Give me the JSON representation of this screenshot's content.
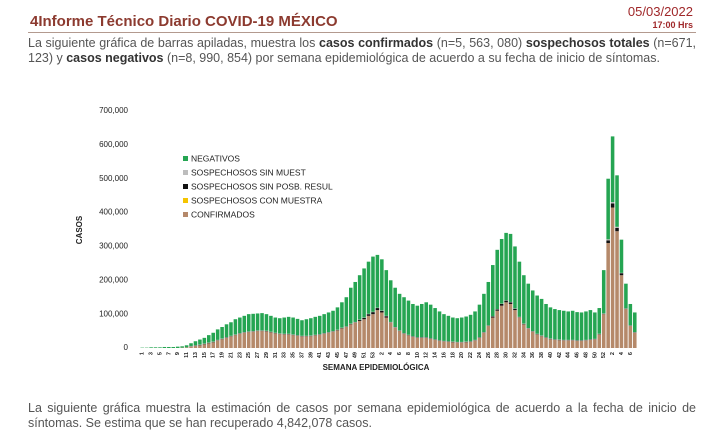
{
  "header": {
    "title": "4Informe Técnico Diario COVID-19 MÉXICO",
    "date": "05/03/2022",
    "time": "17:00 Hrs"
  },
  "intro": [
    "La siguiente gráfica de barras apiladas, muestra los ",
    "casos confirmados",
    " (n=5, 563, 080) ",
    "sospechosos totales",
    " (n=671, 123) y ",
    "casos negativos",
    " (n=8, 990, 854) por semana epidemiológica de acuerdo a su fecha de inicio de síntomas."
  ],
  "outro": "La siguiente gráfica muestra la estimación de casos por semana epidemiológica de acuerdo a la fecha de inicio de síntomas. Se estima que se han recuperado 4,842,078 casos.",
  "chart_data": {
    "type": "stacked_bar",
    "y_label": "CASOS",
    "x_label": "SEMANA EPIDEMIOLÓGICA",
    "categories": [
      "1",
      null,
      "3",
      null,
      "5",
      null,
      "7",
      null,
      "9",
      null,
      "11",
      null,
      "13",
      null,
      "15",
      null,
      "17",
      null,
      "19",
      null,
      "21",
      null,
      "23",
      null,
      "25",
      null,
      "27",
      null,
      "29",
      null,
      "31",
      null,
      "33",
      null,
      "35",
      null,
      "37",
      null,
      "39",
      null,
      "41",
      null,
      "43",
      null,
      "45",
      null,
      "47",
      null,
      "49",
      null,
      "51",
      null,
      "53",
      null,
      "2",
      null,
      "4",
      null,
      "6",
      null,
      "8",
      null,
      "10",
      null,
      "12",
      null,
      "14",
      null,
      "16",
      null,
      "18",
      null,
      "20",
      null,
      "22",
      null,
      "24",
      null,
      "26",
      null,
      "28",
      null,
      "30",
      null,
      "32",
      null,
      "34",
      null,
      "36",
      null,
      "38",
      null,
      "40",
      null,
      "42",
      null,
      "44",
      null,
      "46",
      null,
      "48",
      null,
      "50",
      null,
      "52",
      null,
      "2",
      null,
      "4",
      null,
      "6",
      null
    ],
    "ylim": [
      0,
      700000
    ],
    "yticks": [
      0,
      {
        "value": 100000,
        "label": "100,000"
      },
      {
        "value": 200000,
        "label": "200,000"
      },
      {
        "value": 300000,
        "label": "300,000"
      },
      {
        "value": 400000,
        "label": "400,000"
      },
      {
        "value": 500000,
        "label": "500,000"
      },
      {
        "value": 600000,
        "label": "600,000"
      },
      {
        "value": 700000,
        "label": "700,000"
      }
    ],
    "grid": false,
    "series": [
      {
        "name": "NEGATIVOS",
        "color": "#25a552",
        "values": [
          1000,
          1000,
          2000,
          2000,
          2000,
          3000,
          3000,
          3000,
          4000,
          4000,
          6000,
          8000,
          12000,
          15000,
          17000,
          22000,
          26000,
          31000,
          34000,
          38000,
          40000,
          45000,
          46000,
          48000,
          51000,
          51000,
          50000,
          51000,
          49000,
          47000,
          45000,
          45000,
          48000,
          50000,
          50000,
          48000,
          46000,
          49000,
          51000,
          53000,
          54000,
          56000,
          58000,
          60000,
          66000,
          75000,
          86000,
          106000,
          118000,
          131000,
          145000,
          154000,
          163000,
          156000,
          151000,
          135000,
          123000,
          116000,
          108000,
          106000,
          101000,
          95000,
          93000,
          98000,
          103000,
          99000,
          92000,
          85000,
          79000,
          75000,
          71000,
          70000,
          72000,
          74000,
          78000,
          84000,
          96000,
          113000,
          128000,
          151000,
          175000,
          191000,
          199000,
          201000,
          183000,
          163000,
          143000,
          131000,
          120000,
          113000,
          108000,
          98000,
          92000,
          89000,
          87000,
          86000,
          84000,
          86000,
          83000,
          82000,
          84000,
          86000,
          78000,
          76000,
          128000,
          179000,
          194000,
          152000,
          98000,
          73000,
          63000,
          58000
        ]
      },
      {
        "name": "SOSPECHOSOS SIN MUEST",
        "color": "#bdbdbd",
        "values": [
          0,
          0,
          0,
          0,
          0,
          0,
          0,
          0,
          0,
          0,
          0,
          1000,
          1000,
          1000,
          1000,
          1000,
          1000,
          1000,
          1000,
          1000,
          1000,
          1000,
          1000,
          1000,
          1000,
          1000,
          1000,
          1000,
          1000,
          1000,
          1000,
          1000,
          1000,
          1000,
          1000,
          1000,
          1000,
          1000,
          1000,
          1000,
          1000,
          1000,
          1000,
          1000,
          1000,
          1000,
          1000,
          1000,
          1000,
          1000,
          1000,
          1000,
          1000,
          1000,
          1000,
          1000,
          1000,
          1000,
          1000,
          1000,
          1000,
          1000,
          1000,
          1000,
          1000,
          1000,
          1000,
          1000,
          1000,
          1000,
          1000,
          1000,
          1000,
          1000,
          1000,
          1000,
          1000,
          1000,
          1000,
          1000,
          1000,
          1000,
          1000,
          1000,
          1000,
          1000,
          1000,
          1000,
          1000,
          1000,
          1000,
          1000,
          1000,
          1000,
          1000,
          1000,
          1000,
          1000,
          1000,
          1000,
          1000,
          1000,
          1000,
          1000,
          1000,
          3000,
          4000,
          3000,
          1000,
          1000,
          1000,
          1000
        ]
      },
      {
        "name": "SOSPECHOSOS SIN POSB. RESUL",
        "color": "#111111",
        "values": [
          0,
          0,
          0,
          0,
          0,
          0,
          0,
          0,
          0,
          0,
          0,
          1000,
          1000,
          1000,
          1000,
          1000,
          1000,
          1000,
          1000,
          1000,
          1000,
          1000,
          1000,
          1000,
          1000,
          1000,
          1000,
          1000,
          1000,
          1000,
          1000,
          1000,
          1000,
          1000,
          1000,
          1000,
          1000,
          1000,
          1000,
          1000,
          1000,
          1000,
          1000,
          1000,
          1000,
          1000,
          1000,
          1000,
          1000,
          3000,
          4000,
          5000,
          6000,
          6000,
          5000,
          4000,
          1000,
          1000,
          1000,
          1000,
          1000,
          1000,
          1000,
          1000,
          1000,
          1000,
          1000,
          1000,
          1000,
          1000,
          1000,
          1000,
          1000,
          1000,
          1000,
          1000,
          1000,
          1000,
          1000,
          3000,
          4000,
          5000,
          5000,
          5000,
          4000,
          1000,
          1000,
          1000,
          1000,
          1000,
          1000,
          1000,
          1000,
          1000,
          1000,
          1000,
          1000,
          1000,
          1000,
          1000,
          1000,
          1000,
          1000,
          1000,
          1000,
          8000,
          12000,
          10000,
          6000,
          1000,
          1000,
          1000
        ]
      },
      {
        "name": "SOSPECHOSOS CON MUESTRA",
        "color": "#f5c400",
        "values": [
          0,
          0,
          0,
          0,
          0,
          0,
          0,
          0,
          0,
          0,
          0,
          0,
          0,
          0,
          0,
          0,
          0,
          0,
          0,
          0,
          0,
          0,
          0,
          0,
          0,
          0,
          0,
          0,
          0,
          0,
          0,
          0,
          0,
          0,
          0,
          0,
          0,
          0,
          0,
          0,
          0,
          0,
          0,
          0,
          0,
          0,
          0,
          0,
          0,
          0,
          0,
          0,
          0,
          0,
          0,
          0,
          0,
          0,
          0,
          0,
          0,
          0,
          0,
          0,
          0,
          0,
          0,
          0,
          0,
          0,
          0,
          0,
          0,
          0,
          0,
          0,
          0,
          0,
          0,
          0,
          0,
          0,
          0,
          0,
          0,
          0,
          0,
          0,
          0,
          0,
          0,
          0,
          0,
          0,
          0,
          0,
          0,
          0,
          0,
          0,
          0,
          0,
          0,
          0,
          0,
          0,
          0,
          0,
          0,
          0,
          0,
          0
        ]
      },
      {
        "name": "CONFIRMADOS",
        "color": "#b5896a",
        "values": [
          0,
          0,
          0,
          0,
          0,
          0,
          0,
          0,
          0,
          1000,
          2000,
          4000,
          6000,
          8000,
          11000,
          14000,
          17000,
          22000,
          26000,
          30000,
          34000,
          38000,
          42000,
          45000,
          47000,
          48000,
          50000,
          50000,
          49000,
          46000,
          43000,
          41000,
          40000,
          40000,
          38000,
          36000,
          34000,
          34000,
          35000,
          37000,
          39000,
          42000,
          45000,
          48000,
          52000,
          58000,
          62000,
          70000,
          75000,
          80000,
          85000,
          95000,
          100000,
          112000,
          105000,
          90000,
          75000,
          60000,
          50000,
          42000,
          37000,
          33000,
          30000,
          30000,
          30000,
          27000,
          24000,
          21000,
          19000,
          18000,
          17000,
          16000,
          16000,
          17000,
          18000,
          22000,
          30000,
          45000,
          65000,
          90000,
          110000,
          125000,
          135000,
          130000,
          112000,
          90000,
          70000,
          57000,
          48000,
          40000,
          35000,
          30000,
          26000,
          24000,
          23000,
          22000,
          22000,
          22000,
          21000,
          21000,
          22000,
          24000,
          25000,
          40000,
          100000,
          310000,
          415000,
          345000,
          215000,
          115000,
          65000,
          45000
        ]
      }
    ]
  }
}
